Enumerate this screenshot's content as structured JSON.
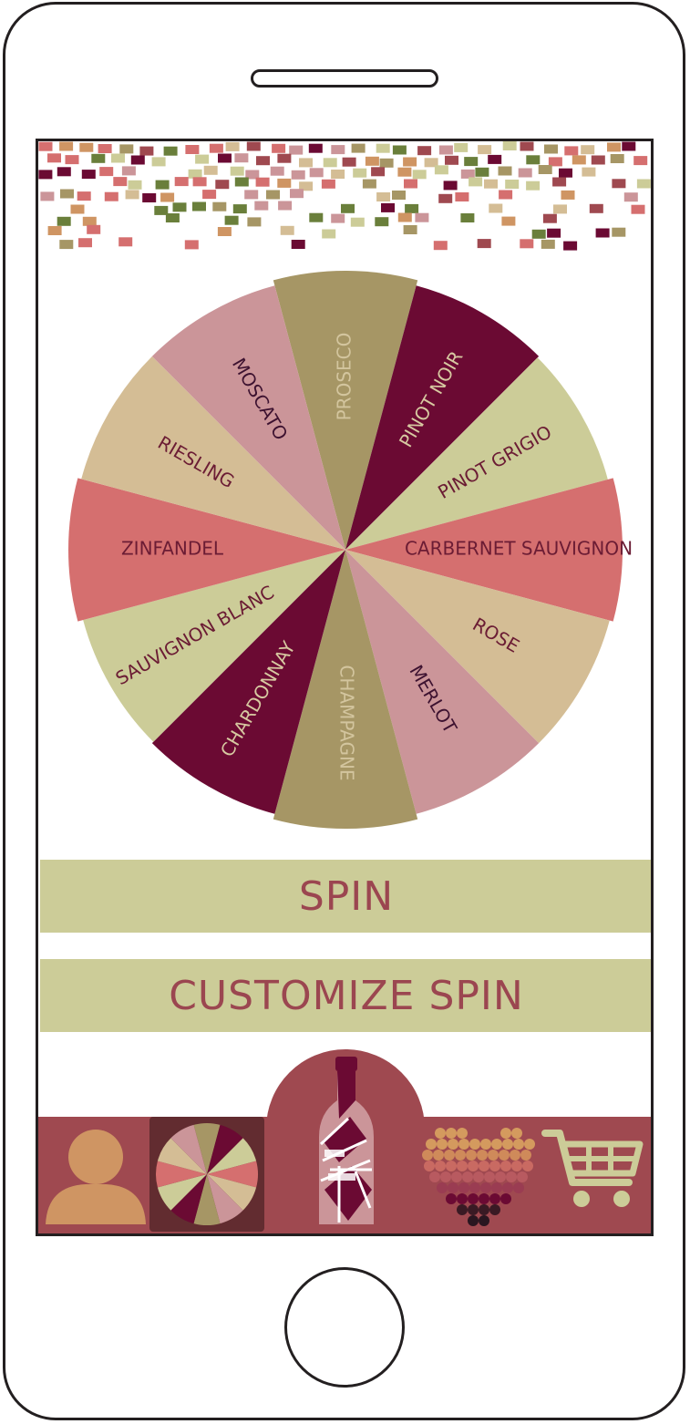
{
  "wheel": {
    "segments": [
      {
        "label": "PROSECO",
        "color": "#a69665",
        "text_color": "#d3c59e"
      },
      {
        "label": "PINOT NOIR",
        "color": "#6b0a33",
        "text_color": "#d7c9a1"
      },
      {
        "label": "PINOT GRIGIO",
        "color": "#cccc98",
        "text_color": "#6b1c34"
      },
      {
        "label": "CARBERNET SAUVIGNON",
        "color": "#d56f6f",
        "text_color": "#6b1c34"
      },
      {
        "label": "ROSE",
        "color": "#d4bd95",
        "text_color": "#6b1c34"
      },
      {
        "label": "MERLOT",
        "color": "#cb9599",
        "text_color": "#3d1230"
      },
      {
        "label": "CHAMPAGNE",
        "color": "#a69665",
        "text_color": "#d3c59e"
      },
      {
        "label": "CHARDONNAY",
        "color": "#6b0a33",
        "text_color": "#d7c9a1"
      },
      {
        "label": "SAUVIGNON BLANC",
        "color": "#cccc98",
        "text_color": "#6b1c34"
      },
      {
        "label": "ZINFANDEL",
        "color": "#d56f6f",
        "text_color": "#6b1c34"
      },
      {
        "label": "RIESLING",
        "color": "#d4bd95",
        "text_color": "#6b1c34"
      },
      {
        "label": "MOSCATO",
        "color": "#cb9599",
        "text_color": "#3d1230"
      }
    ]
  },
  "buttons": {
    "spin_label": "SPIN",
    "customize_label": "CUSTOMIZE SPIN"
  },
  "tabbar": {
    "items": [
      {
        "icon": "profile-icon",
        "active": false
      },
      {
        "icon": "spin-wheel-icon",
        "active": true
      },
      {
        "icon": "wine-bottle-icon",
        "active": false
      },
      {
        "icon": "grape-heart-icon",
        "active": false
      },
      {
        "icon": "shopping-cart-icon",
        "active": false
      }
    ]
  },
  "colors": {
    "burgundy": "#6b0a33",
    "rose": "#9f4950",
    "sage": "#cccc98",
    "olive": "#a69665",
    "coral": "#d56f6f",
    "sand": "#d4bd95",
    "pink": "#cb9599",
    "green": "#6a7f3b"
  }
}
